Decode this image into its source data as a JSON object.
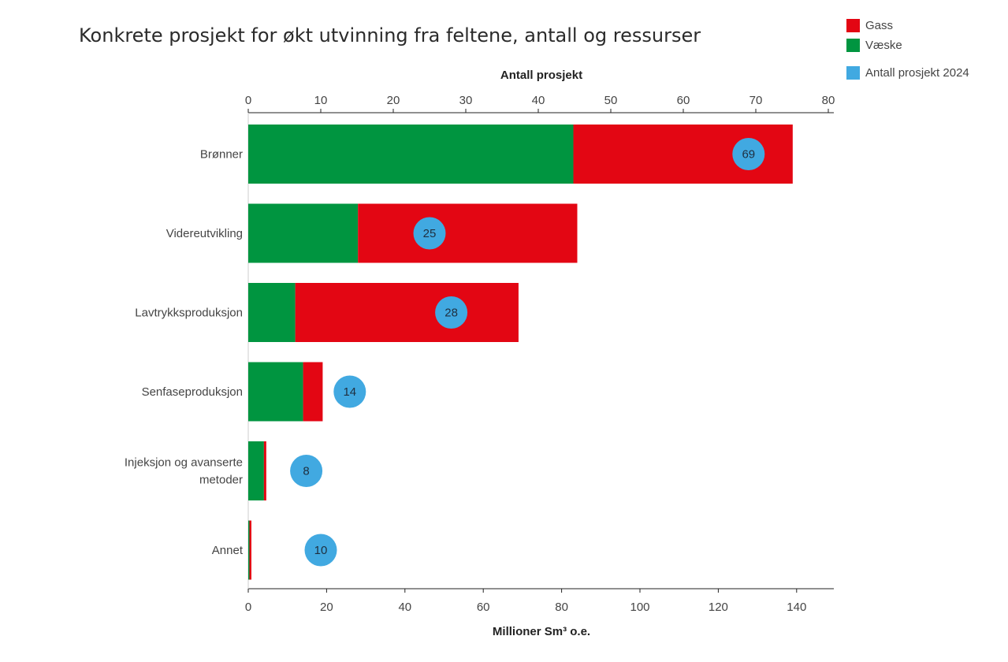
{
  "title": "Konkrete prosjekt for økt utvinning fra feltene, antall og ressurser",
  "legend": [
    {
      "label": "Gass",
      "color": "#e30613"
    },
    {
      "label": "Væske",
      "color": "#009540"
    },
    {
      "label": "Antall prosjekt 2024",
      "color": "#41a9e1"
    }
  ],
  "chart_data": {
    "type": "bar",
    "orientation": "horizontal",
    "stacked": true,
    "categories": [
      "Brønner",
      "Videreutvikling",
      "Lavtrykksproduksjon",
      "Senfaseproduksjon",
      "Injeksjon og avanserte metoder",
      "Annet"
    ],
    "series": [
      {
        "name": "Væske",
        "color": "#009540",
        "values": [
          83,
          28,
          12,
          14,
          4,
          0.3
        ]
      },
      {
        "name": "Gass",
        "color": "#e30613",
        "values": [
          56,
          56,
          57,
          5,
          0.6,
          0.5
        ]
      }
    ],
    "count_series": {
      "name": "Antall prosjekt 2024",
      "color": "#41a9e1",
      "values": [
        69,
        25,
        28,
        14,
        8,
        10
      ]
    },
    "xlabel": "Millioner Sm³ o.e.",
    "xlim": [
      0,
      150
    ],
    "x_ticks": [
      "0",
      "20",
      "40",
      "60",
      "80",
      "100",
      "120",
      "140"
    ],
    "x_tick_values": [
      0,
      20,
      40,
      60,
      80,
      100,
      120,
      140
    ],
    "x2label": "Antall prosjekt",
    "x2lim": [
      0,
      80
    ],
    "x2_ticks": [
      "0",
      "10",
      "20",
      "30",
      "40",
      "50",
      "60",
      "70",
      "80"
    ],
    "x2_tick_values": [
      0,
      10,
      20,
      30,
      40,
      50,
      60,
      70,
      80
    ],
    "legend_position": "top-right",
    "grid": false
  }
}
